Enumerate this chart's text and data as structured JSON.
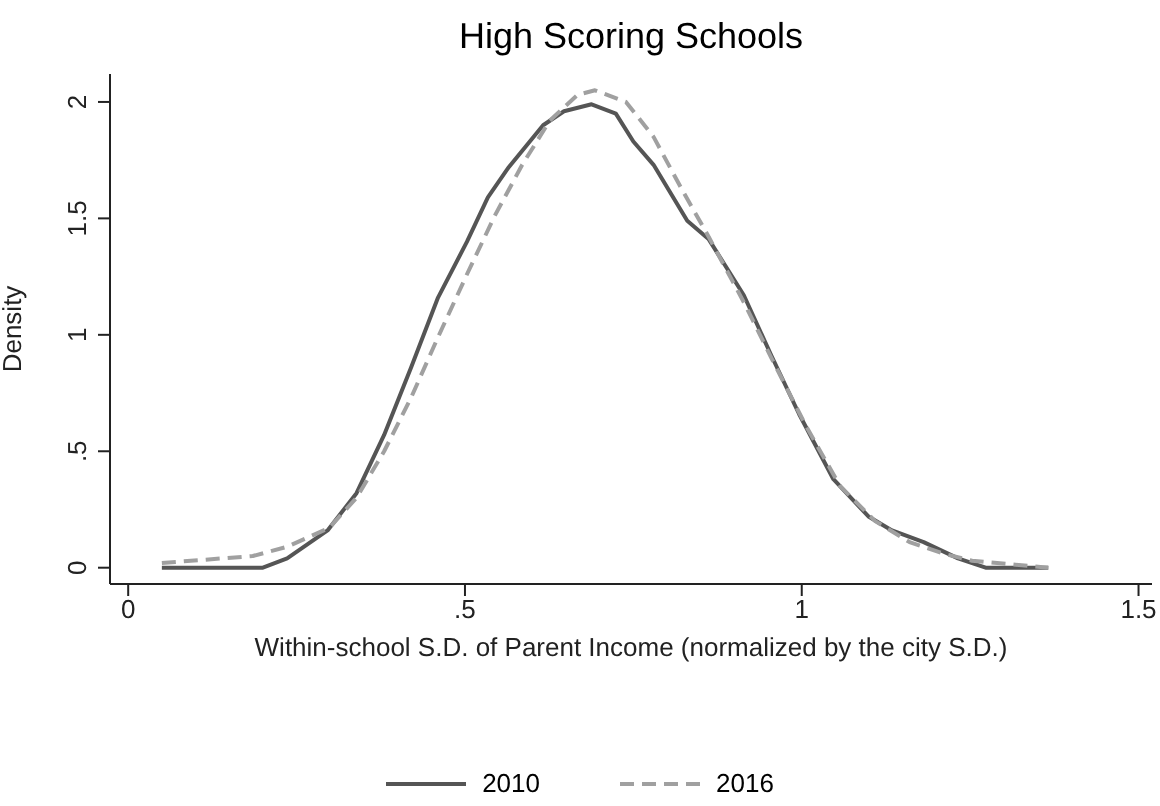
{
  "chart_data": {
    "type": "line",
    "title": "High Scoring Schools",
    "xlabel": "Within-school S.D. of Parent Income (normalized by the city S.D.)",
    "ylabel": "Density",
    "xlim": [
      -0.027,
      1.52
    ],
    "xticks": [
      0,
      {
        "value": 0.5,
        "label": ".5"
      },
      1,
      1.5
    ],
    "ylim": [
      -0.07,
      2.12
    ],
    "yticks": [
      0,
      {
        "value": 0.5,
        "label": ".5"
      },
      1,
      1.5,
      2
    ],
    "grid": false,
    "legend": "bottom",
    "marker": "none",
    "series": [
      {
        "name": "2010",
        "color": "#555555",
        "line_style": "solid",
        "x": [
          0.05,
          0.2,
          0.236,
          0.296,
          0.339,
          0.38,
          0.42,
          0.46,
          0.503,
          0.534,
          0.565,
          0.616,
          0.647,
          0.688,
          0.724,
          0.75,
          0.78,
          0.83,
          0.862,
          0.914,
          0.955,
          0.996,
          1.047,
          1.099,
          1.134,
          1.181,
          1.232,
          1.273,
          1.366
        ],
        "values": [
          0,
          0,
          0.04,
          0.16,
          0.32,
          0.57,
          0.86,
          1.16,
          1.4,
          1.59,
          1.72,
          1.9,
          1.96,
          1.99,
          1.95,
          1.83,
          1.73,
          1.49,
          1.41,
          1.17,
          0.91,
          0.66,
          0.38,
          0.22,
          0.16,
          0.11,
          0.04,
          0,
          0
        ]
      },
      {
        "name": "2016",
        "color": "#a0a0a0",
        "line_style": "dashed",
        "x": [
          0.05,
          0.185,
          0.236,
          0.298,
          0.339,
          0.38,
          0.42,
          0.46,
          0.503,
          0.544,
          0.585,
          0.626,
          0.667,
          0.693,
          0.739,
          0.78,
          0.821,
          0.862,
          0.914,
          0.955,
          1.006,
          1.057,
          1.109,
          1.16,
          1.211,
          1.253,
          1.366
        ],
        "values": [
          0.02,
          0.05,
          0.09,
          0.17,
          0.3,
          0.5,
          0.73,
          0.99,
          1.26,
          1.51,
          1.73,
          1.92,
          2.03,
          2.05,
          2.0,
          1.85,
          1.63,
          1.42,
          1.14,
          0.9,
          0.61,
          0.35,
          0.2,
          0.11,
          0.06,
          0.03,
          0
        ]
      }
    ]
  }
}
